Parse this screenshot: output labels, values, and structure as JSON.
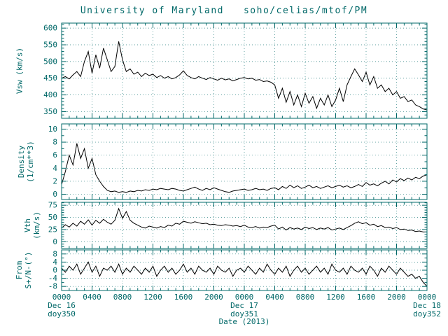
{
  "title": "University of Maryland   soho/celias/mtof/PM",
  "xlabel": "Date (2013)",
  "colors": {
    "background": "#ffffff",
    "text": "#006868",
    "axis": "#006868",
    "data_line": "#000000"
  },
  "date_markers": [
    {
      "line1": "Dec 16",
      "line2": "doy350",
      "hour": 0
    },
    {
      "line1": "Dec 17",
      "line2": "doy351",
      "hour": 24
    },
    {
      "line1": "Dec 18",
      "line2": "doy352",
      "hour": 48
    }
  ],
  "chart_data": {
    "type": "line",
    "title": "University of Maryland   soho/celias/mtof/PM",
    "xlabel": "Date (2013)",
    "grid": "dotted",
    "legend": "none",
    "xlim": [
      0,
      48
    ],
    "x_start": 0,
    "x_step": 0.5,
    "x_minor_hours": 1,
    "xticks": {
      "positions": [
        0,
        4,
        8,
        12,
        16,
        20,
        24,
        28,
        32,
        36,
        40,
        44,
        48
      ],
      "labels": [
        "0000",
        "0400",
        "0800",
        "1200",
        "1600",
        "2000",
        "0000",
        "0400",
        "0800",
        "1200",
        "1600",
        "2000",
        "0000"
      ]
    },
    "panels": [
      {
        "name": "vsw",
        "ylabel": "Vsw (km/s)",
        "ylabel_lines": [
          "Vsw (km/s)"
        ],
        "ylim": [
          330,
          615
        ],
        "yticks": [
          350,
          400,
          450,
          500,
          550,
          600
        ],
        "yminor": 10,
        "values": [
          450,
          455,
          448,
          460,
          470,
          455,
          500,
          530,
          465,
          520,
          480,
          540,
          505,
          470,
          485,
          560,
          505,
          470,
          478,
          462,
          468,
          455,
          465,
          458,
          462,
          452,
          458,
          450,
          455,
          448,
          452,
          460,
          472,
          458,
          452,
          448,
          455,
          450,
          446,
          452,
          448,
          444,
          450,
          445,
          448,
          442,
          446,
          450,
          452,
          448,
          450,
          444,
          446,
          440,
          442,
          438,
          430,
          390,
          420,
          378,
          410,
          370,
          400,
          365,
          405,
          375,
          395,
          360,
          390,
          370,
          400,
          365,
          385,
          420,
          380,
          430,
          455,
          478,
          460,
          440,
          468,
          430,
          455,
          420,
          430,
          410,
          420,
          400,
          410,
          390,
          395,
          380,
          385,
          370,
          365,
          358,
          355
        ]
      },
      {
        "name": "density",
        "ylabel": "Density (1/cm**3)",
        "ylabel_lines": [
          "Density",
          "(1/cm**3)"
        ],
        "ylim": [
          -0.8,
          10.8
        ],
        "yticks": [
          0,
          2,
          4,
          6,
          8,
          10
        ],
        "yminor": 1,
        "values": [
          1.5,
          3.5,
          6.0,
          4.5,
          7.8,
          5.5,
          7.0,
          4.0,
          5.5,
          3.0,
          2.0,
          1.2,
          0.6,
          0.4,
          0.5,
          0.3,
          0.4,
          0.3,
          0.5,
          0.4,
          0.6,
          0.5,
          0.7,
          0.6,
          0.8,
          0.7,
          0.9,
          0.8,
          0.7,
          0.9,
          0.8,
          0.6,
          0.5,
          0.7,
          0.9,
          1.1,
          0.8,
          0.6,
          0.9,
          0.7,
          1.0,
          0.8,
          0.6,
          0.4,
          0.3,
          0.5,
          0.6,
          0.7,
          0.8,
          0.6,
          0.7,
          0.9,
          0.7,
          0.8,
          0.6,
          0.9,
          1.0,
          0.7,
          1.2,
          0.9,
          1.4,
          1.0,
          1.3,
          0.9,
          1.1,
          1.4,
          1.0,
          1.2,
          0.9,
          1.1,
          1.3,
          1.0,
          1.2,
          1.4,
          1.1,
          1.3,
          1.0,
          1.2,
          1.5,
          1.2,
          1.8,
          1.4,
          1.6,
          1.3,
          1.7,
          2.0,
          1.6,
          2.2,
          1.9,
          2.4,
          2.1,
          2.5,
          2.2,
          2.6,
          2.4,
          2.8,
          3.0
        ]
      },
      {
        "name": "vth",
        "ylabel": "Vth (km/s)",
        "ylabel_lines": [
          "Vth",
          "(km/s)"
        ],
        "ylim": [
          -14,
          81
        ],
        "yticks": [
          0,
          25,
          50,
          75
        ],
        "yminor": 5,
        "values": [
          28,
          35,
          30,
          38,
          32,
          42,
          36,
          45,
          34,
          44,
          38,
          46,
          40,
          36,
          44,
          68,
          48,
          62,
          44,
          38,
          34,
          30,
          28,
          32,
          30,
          28,
          31,
          29,
          34,
          32,
          38,
          36,
          42,
          40,
          38,
          41,
          39,
          37,
          38,
          35,
          36,
          34,
          33,
          35,
          34,
          32,
          33,
          31,
          34,
          30,
          29,
          31,
          28,
          30,
          29,
          32,
          34,
          26,
          30,
          24,
          29,
          26,
          28,
          25,
          30,
          27,
          29,
          25,
          28,
          26,
          29,
          24,
          26,
          28,
          25,
          29,
          33,
          38,
          41,
          37,
          39,
          34,
          36,
          31,
          33,
          29,
          30,
          27,
          29,
          25,
          26,
          23,
          24,
          21,
          22,
          20,
          20
        ]
      },
      {
        "name": "ns_angle",
        "ylabel": "From S+/N-(°)",
        "ylabel_lines": [
          "From",
          "S+/N-(°)"
        ],
        "ylim": [
          -10,
          10
        ],
        "yticks": [
          -8,
          -4,
          0,
          4,
          8
        ],
        "yminor": 2,
        "values": [
          1,
          -1,
          2,
          0,
          3,
          -2,
          1,
          4,
          -1,
          2,
          -3,
          1,
          0,
          2,
          -1,
          3,
          -2,
          1,
          -1,
          2,
          0,
          -2,
          1,
          -1,
          2,
          -3,
          0,
          2,
          -1,
          1,
          -2,
          0,
          3,
          -1,
          1,
          -2,
          2,
          0,
          -1,
          1,
          -2,
          2,
          0,
          -1,
          1,
          -3,
          0,
          1,
          -1,
          2,
          0,
          -2,
          1,
          -1,
          3,
          0,
          -2,
          1,
          -1,
          2,
          -3,
          0,
          2,
          -1,
          1,
          -2,
          0,
          2,
          -1,
          1,
          -2,
          3,
          0,
          -1,
          1,
          -2,
          2,
          0,
          -1,
          1,
          -2,
          2,
          0,
          -3,
          1,
          -1,
          2,
          0,
          -2,
          1,
          -1,
          -3,
          -2,
          -4,
          -3,
          -6,
          -8
        ]
      }
    ]
  }
}
